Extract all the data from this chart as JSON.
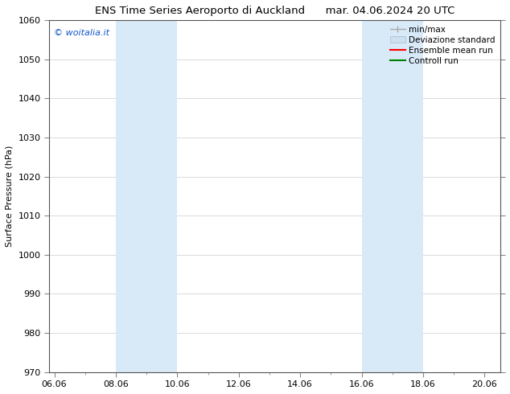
{
  "title": "ENS Time Series Aeroporto di Auckland      mar. 04.06.2024 20 UTC",
  "ylabel": "Surface Pressure (hPa)",
  "ylim": [
    970,
    1060
  ],
  "yticks": [
    970,
    980,
    990,
    1000,
    1010,
    1020,
    1030,
    1040,
    1050,
    1060
  ],
  "xlim_start": 5.83,
  "xlim_end": 20.5,
  "xtick_labels": [
    "06.06",
    "08.06",
    "10.06",
    "12.06",
    "14.06",
    "16.06",
    "18.06",
    "20.06"
  ],
  "xtick_positions": [
    6.0,
    8.0,
    10.0,
    12.0,
    14.0,
    16.0,
    18.0,
    20.0
  ],
  "shaded_regions": [
    {
      "x_start": 8.0,
      "x_end": 10.0,
      "color": "#d8e9f8"
    },
    {
      "x_start": 16.0,
      "x_end": 17.0,
      "color": "#d8e9f8"
    },
    {
      "x_start": 17.0,
      "x_end": 18.0,
      "color": "#d8e9f8"
    }
  ],
  "watermark_text": "© woitalia.it",
  "watermark_color": "#1155cc",
  "bg_color": "#ffffff",
  "grid_color": "#cccccc",
  "font_size": 8,
  "title_font_size": 9.5
}
